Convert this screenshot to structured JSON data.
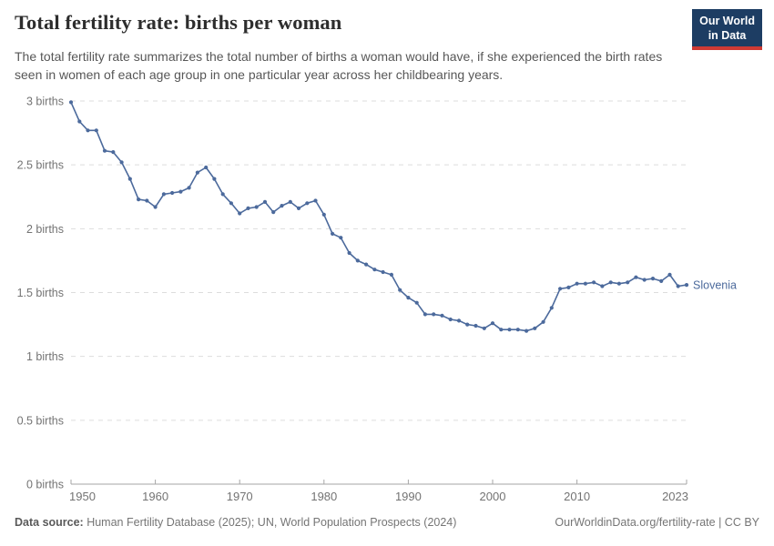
{
  "header": {
    "title": "Total fertility rate: births per woman",
    "subtitle": "The total fertility rate summarizes the total number of births a woman would have, if she experienced the birth rates seen in women of each age group in one particular year across her childbearing years.",
    "logo": {
      "line1": "Our World",
      "line2": "in Data"
    }
  },
  "footer": {
    "source_label": "Data source:",
    "source_text": " Human Fertility Database (2025); UN, World Population Prospects (2024)",
    "link_text": "OurWorldinData.org/fertility-rate | CC BY"
  },
  "colors": {
    "title_color": "#2d2d2d",
    "subtitle_color": "#575757",
    "footer_color": "#757575",
    "logo_navy": "#1d3d63",
    "logo_red": "#cf3a34",
    "line_color": "#4c6a9c",
    "grid_color": "#dddddd",
    "axis_color": "#a6a6a6",
    "tick_label_color": "#737373"
  },
  "chart_data": {
    "type": "line",
    "title": "Total fertility rate: births per woman",
    "xlabel": "",
    "ylabel": "births",
    "xlim": [
      1950,
      2023
    ],
    "ylim": [
      0,
      3
    ],
    "grid": "horizontal-dashed",
    "legend_position": "end-of-line-label",
    "xticks": [
      {
        "value": 1950,
        "label": "1950"
      },
      {
        "value": 1960,
        "label": "1960"
      },
      {
        "value": 1970,
        "label": "1970"
      },
      {
        "value": 1980,
        "label": "1980"
      },
      {
        "value": 1990,
        "label": "1990"
      },
      {
        "value": 2000,
        "label": "2000"
      },
      {
        "value": 2010,
        "label": "2010"
      },
      {
        "value": 2023,
        "label": "2023"
      }
    ],
    "yticks": [
      {
        "value": 0,
        "label": "0 births"
      },
      {
        "value": 0.5,
        "label": "0.5 births"
      },
      {
        "value": 1,
        "label": "1 births"
      },
      {
        "value": 1.5,
        "label": "1.5 births"
      },
      {
        "value": 2,
        "label": "2 births"
      },
      {
        "value": 2.5,
        "label": "2.5 births"
      },
      {
        "value": 3,
        "label": "3 births"
      }
    ],
    "x": [
      1950,
      1951,
      1952,
      1953,
      1954,
      1955,
      1956,
      1957,
      1958,
      1959,
      1960,
      1961,
      1962,
      1963,
      1964,
      1965,
      1966,
      1967,
      1968,
      1969,
      1970,
      1971,
      1972,
      1973,
      1974,
      1975,
      1976,
      1977,
      1978,
      1979,
      1980,
      1981,
      1982,
      1983,
      1984,
      1985,
      1986,
      1987,
      1988,
      1989,
      1990,
      1991,
      1992,
      1993,
      1994,
      1995,
      1996,
      1997,
      1998,
      1999,
      2000,
      2001,
      2002,
      2003,
      2004,
      2005,
      2006,
      2007,
      2008,
      2009,
      2010,
      2011,
      2012,
      2013,
      2014,
      2015,
      2016,
      2017,
      2018,
      2019,
      2020,
      2021,
      2022,
      2023
    ],
    "series": [
      {
        "name": "Slovenia",
        "values": [
          2.99,
          2.84,
          2.77,
          2.77,
          2.61,
          2.6,
          2.52,
          2.39,
          2.23,
          2.22,
          2.17,
          2.27,
          2.28,
          2.29,
          2.32,
          2.44,
          2.48,
          2.39,
          2.27,
          2.2,
          2.12,
          2.16,
          2.17,
          2.21,
          2.13,
          2.18,
          2.21,
          2.16,
          2.2,
          2.22,
          2.11,
          1.96,
          1.93,
          1.81,
          1.75,
          1.72,
          1.68,
          1.66,
          1.64,
          1.52,
          1.46,
          1.42,
          1.33,
          1.33,
          1.32,
          1.29,
          1.28,
          1.25,
          1.24,
          1.22,
          1.26,
          1.21,
          1.21,
          1.21,
          1.2,
          1.22,
          1.27,
          1.38,
          1.53,
          1.54,
          1.57,
          1.57,
          1.58,
          1.55,
          1.58,
          1.57,
          1.58,
          1.62,
          1.6,
          1.61,
          1.59,
          1.64,
          1.55,
          1.56
        ]
      }
    ]
  }
}
